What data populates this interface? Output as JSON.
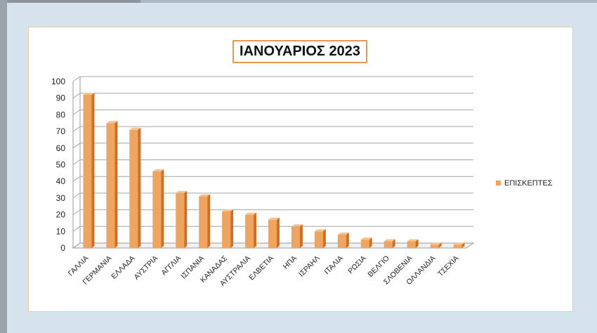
{
  "chart_data": {
    "type": "bar",
    "title": "ΙΑΝΟΥΑΡΙΟΣ 2023",
    "categories": [
      "ΓΑΛΛΙΑ",
      "ΓΕΡΜΑΝΙΑ",
      "ΕΛΛΑΔΑ",
      "ΑΥΣΤΡΙΑ",
      "ΑΓΓΛΙΑ",
      "ΙΣΠΑΝΙΑ",
      "ΚΑΝΑΔΑΣ",
      "ΑΥΣΤΡΑΛΙΑ",
      "ΕΛΒΕΤΙΑ",
      "ΗΠΑ",
      "ΙΣΡΑΗΛ",
      "ΙΤΑΛΙΑ",
      "ΡΩΣΙΑ",
      "ΒΕΛΓΙΟ",
      "ΣΛΟΒΕΝΙΑ",
      "ΟΛΛΑΝΔΙΑ",
      "ΤΣΕΧΙΑ"
    ],
    "series": [
      {
        "name": "ΕΠΙΣΚΕΠΤΕΣ",
        "values": [
          92,
          75,
          71,
          46,
          33,
          31,
          22,
          20,
          17,
          13,
          10,
          8,
          5,
          4,
          4,
          2,
          2
        ]
      }
    ],
    "ylim": [
      0,
      100
    ],
    "yticks": [
      "0",
      "10",
      "20",
      "30",
      "40",
      "50",
      "60",
      "70",
      "80",
      "90",
      "100"
    ],
    "grid": true,
    "legend_position": "right",
    "colors": {
      "bar_front": "#f0a45e",
      "bar_side": "#c9702b",
      "bar_top": "#f7c38e",
      "title_border": "#e59a4e"
    }
  }
}
